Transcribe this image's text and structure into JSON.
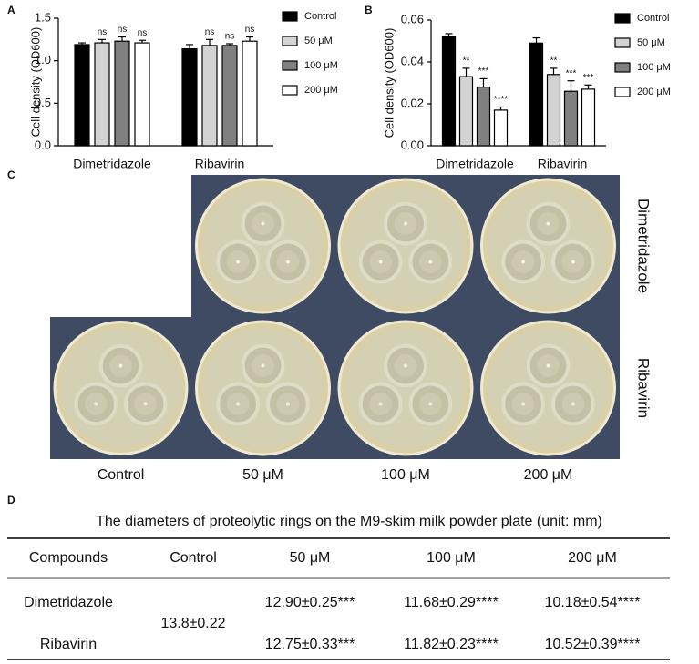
{
  "chart_data": [
    {
      "type": "bar",
      "ylabel": "Cell density (OD600)",
      "categories": [
        "Dimetridazole",
        "Ribavirin"
      ],
      "series": [
        {
          "name": "Control",
          "color": "#000000",
          "values": [
            1.19,
            1.14
          ],
          "errors": [
            0.02,
            0.05
          ]
        },
        {
          "name": "50 μM",
          "color": "#d3d3d3",
          "values": [
            1.21,
            1.18
          ],
          "errors": [
            0.04,
            0.07
          ],
          "significance": [
            "ns",
            "ns"
          ]
        },
        {
          "name": "100 μM",
          "color": "#808080",
          "values": [
            1.23,
            1.18
          ],
          "errors": [
            0.05,
            0.02
          ],
          "significance": [
            "ns",
            "ns"
          ]
        },
        {
          "name": "200 μM",
          "color": "#ffffff",
          "values": [
            1.21,
            1.23
          ],
          "errors": [
            0.03,
            0.05
          ],
          "significance": [
            "ns",
            "ns"
          ]
        }
      ],
      "ylim": [
        0,
        1.5
      ],
      "yticks": [
        {
          "value": 0,
          "label": "0.0"
        },
        0.5,
        {
          "value": 1,
          "label": "1.0"
        },
        1.5
      ],
      "legend": "right"
    },
    {
      "type": "bar",
      "ylabel": "Cell density (OD600)",
      "categories": [
        "Dimetridazole",
        "Ribavirin"
      ],
      "series": [
        {
          "name": "Control",
          "color": "#000000",
          "values": [
            0.052,
            0.049
          ],
          "errors": [
            0.0015,
            0.0025
          ]
        },
        {
          "name": "50 μM",
          "color": "#d3d3d3",
          "values": [
            0.033,
            0.034
          ],
          "errors": [
            0.004,
            0.003
          ],
          "significance": [
            "**",
            "**"
          ]
        },
        {
          "name": "100 μM",
          "color": "#808080",
          "values": [
            0.028,
            0.026
          ],
          "errors": [
            0.004,
            0.005
          ],
          "significance": [
            "***",
            "***"
          ]
        },
        {
          "name": "200 μM",
          "color": "#ffffff",
          "values": [
            0.017,
            0.027
          ],
          "errors": [
            0.0015,
            0.002
          ],
          "significance": [
            "****",
            "***"
          ]
        }
      ],
      "ylim": [
        0,
        0.06
      ],
      "yticks": [
        {
          "value": 0,
          "label": "0.00"
        },
        {
          "value": 0.02,
          "label": "0.02"
        },
        {
          "value": 0.04,
          "label": "0.04"
        },
        {
          "value": 0.06,
          "label": "0.06"
        }
      ],
      "legend": "right"
    }
  ],
  "panel_labels": [
    "A",
    "B",
    "C",
    "D"
  ],
  "photos": {
    "columns": [
      "Control",
      "50 μM",
      "100 μM",
      "200 μM"
    ],
    "rows": [
      "Dimetridazole",
      "Ribavirin"
    ]
  },
  "table": {
    "title": "The diameters of proteolytic rings on the M9-skim milk powder plate (unit: mm)",
    "header": [
      "Compounds",
      "Control",
      "50 μM",
      "100 μM",
      "200 μM"
    ],
    "control": "13.8±0.22",
    "rows": [
      [
        "Dimetridazole",
        "12.90±0.25***",
        "11.68±0.29****",
        "10.18±0.54****"
      ],
      [
        "Ribavirin",
        "12.75±0.33***",
        "11.82±0.23****",
        "10.52±0.39****"
      ]
    ]
  }
}
